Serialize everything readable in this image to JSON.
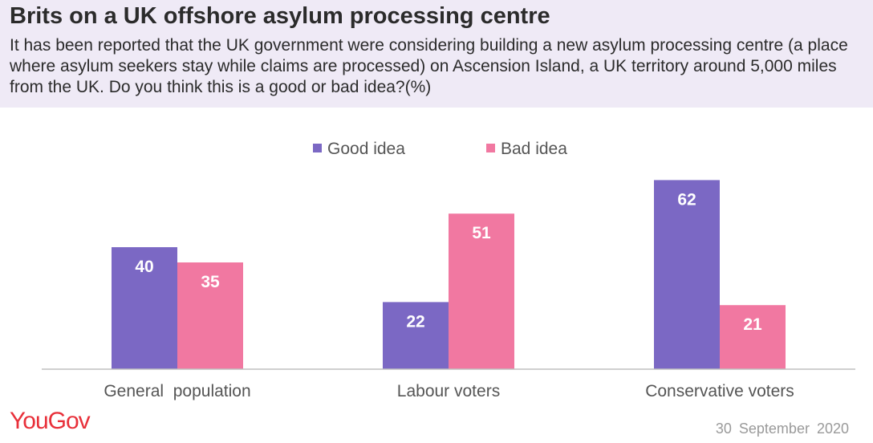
{
  "header": {
    "title": "Brits on a UK offshore asylum processing centre",
    "subtitle": "It has been reported that the UK government were considering building a new asylum processing centre (a place where asylum seekers stay while claims are processed) on Ascension Island, a UK territory around 5,000 miles from the UK. Do you think this is a good or bad idea?(%)"
  },
  "footer": {
    "logo_text": "YouGov",
    "date": "30 September 2020"
  },
  "chart_data": {
    "type": "bar",
    "title": "Brits on a UK offshore asylum processing centre",
    "categories": [
      "General  population",
      "Labour voters",
      "Conservative voters"
    ],
    "series": [
      {
        "name": "Good idea",
        "color": "#7b68c4",
        "values": [
          40,
          22,
          62
        ]
      },
      {
        "name": "Bad idea",
        "color": "#f178a1",
        "values": [
          35,
          51,
          21
        ]
      }
    ],
    "ylim": [
      0,
      70
    ],
    "xlabel": "",
    "ylabel": "",
    "legend_position": "top-center",
    "grid": false
  }
}
